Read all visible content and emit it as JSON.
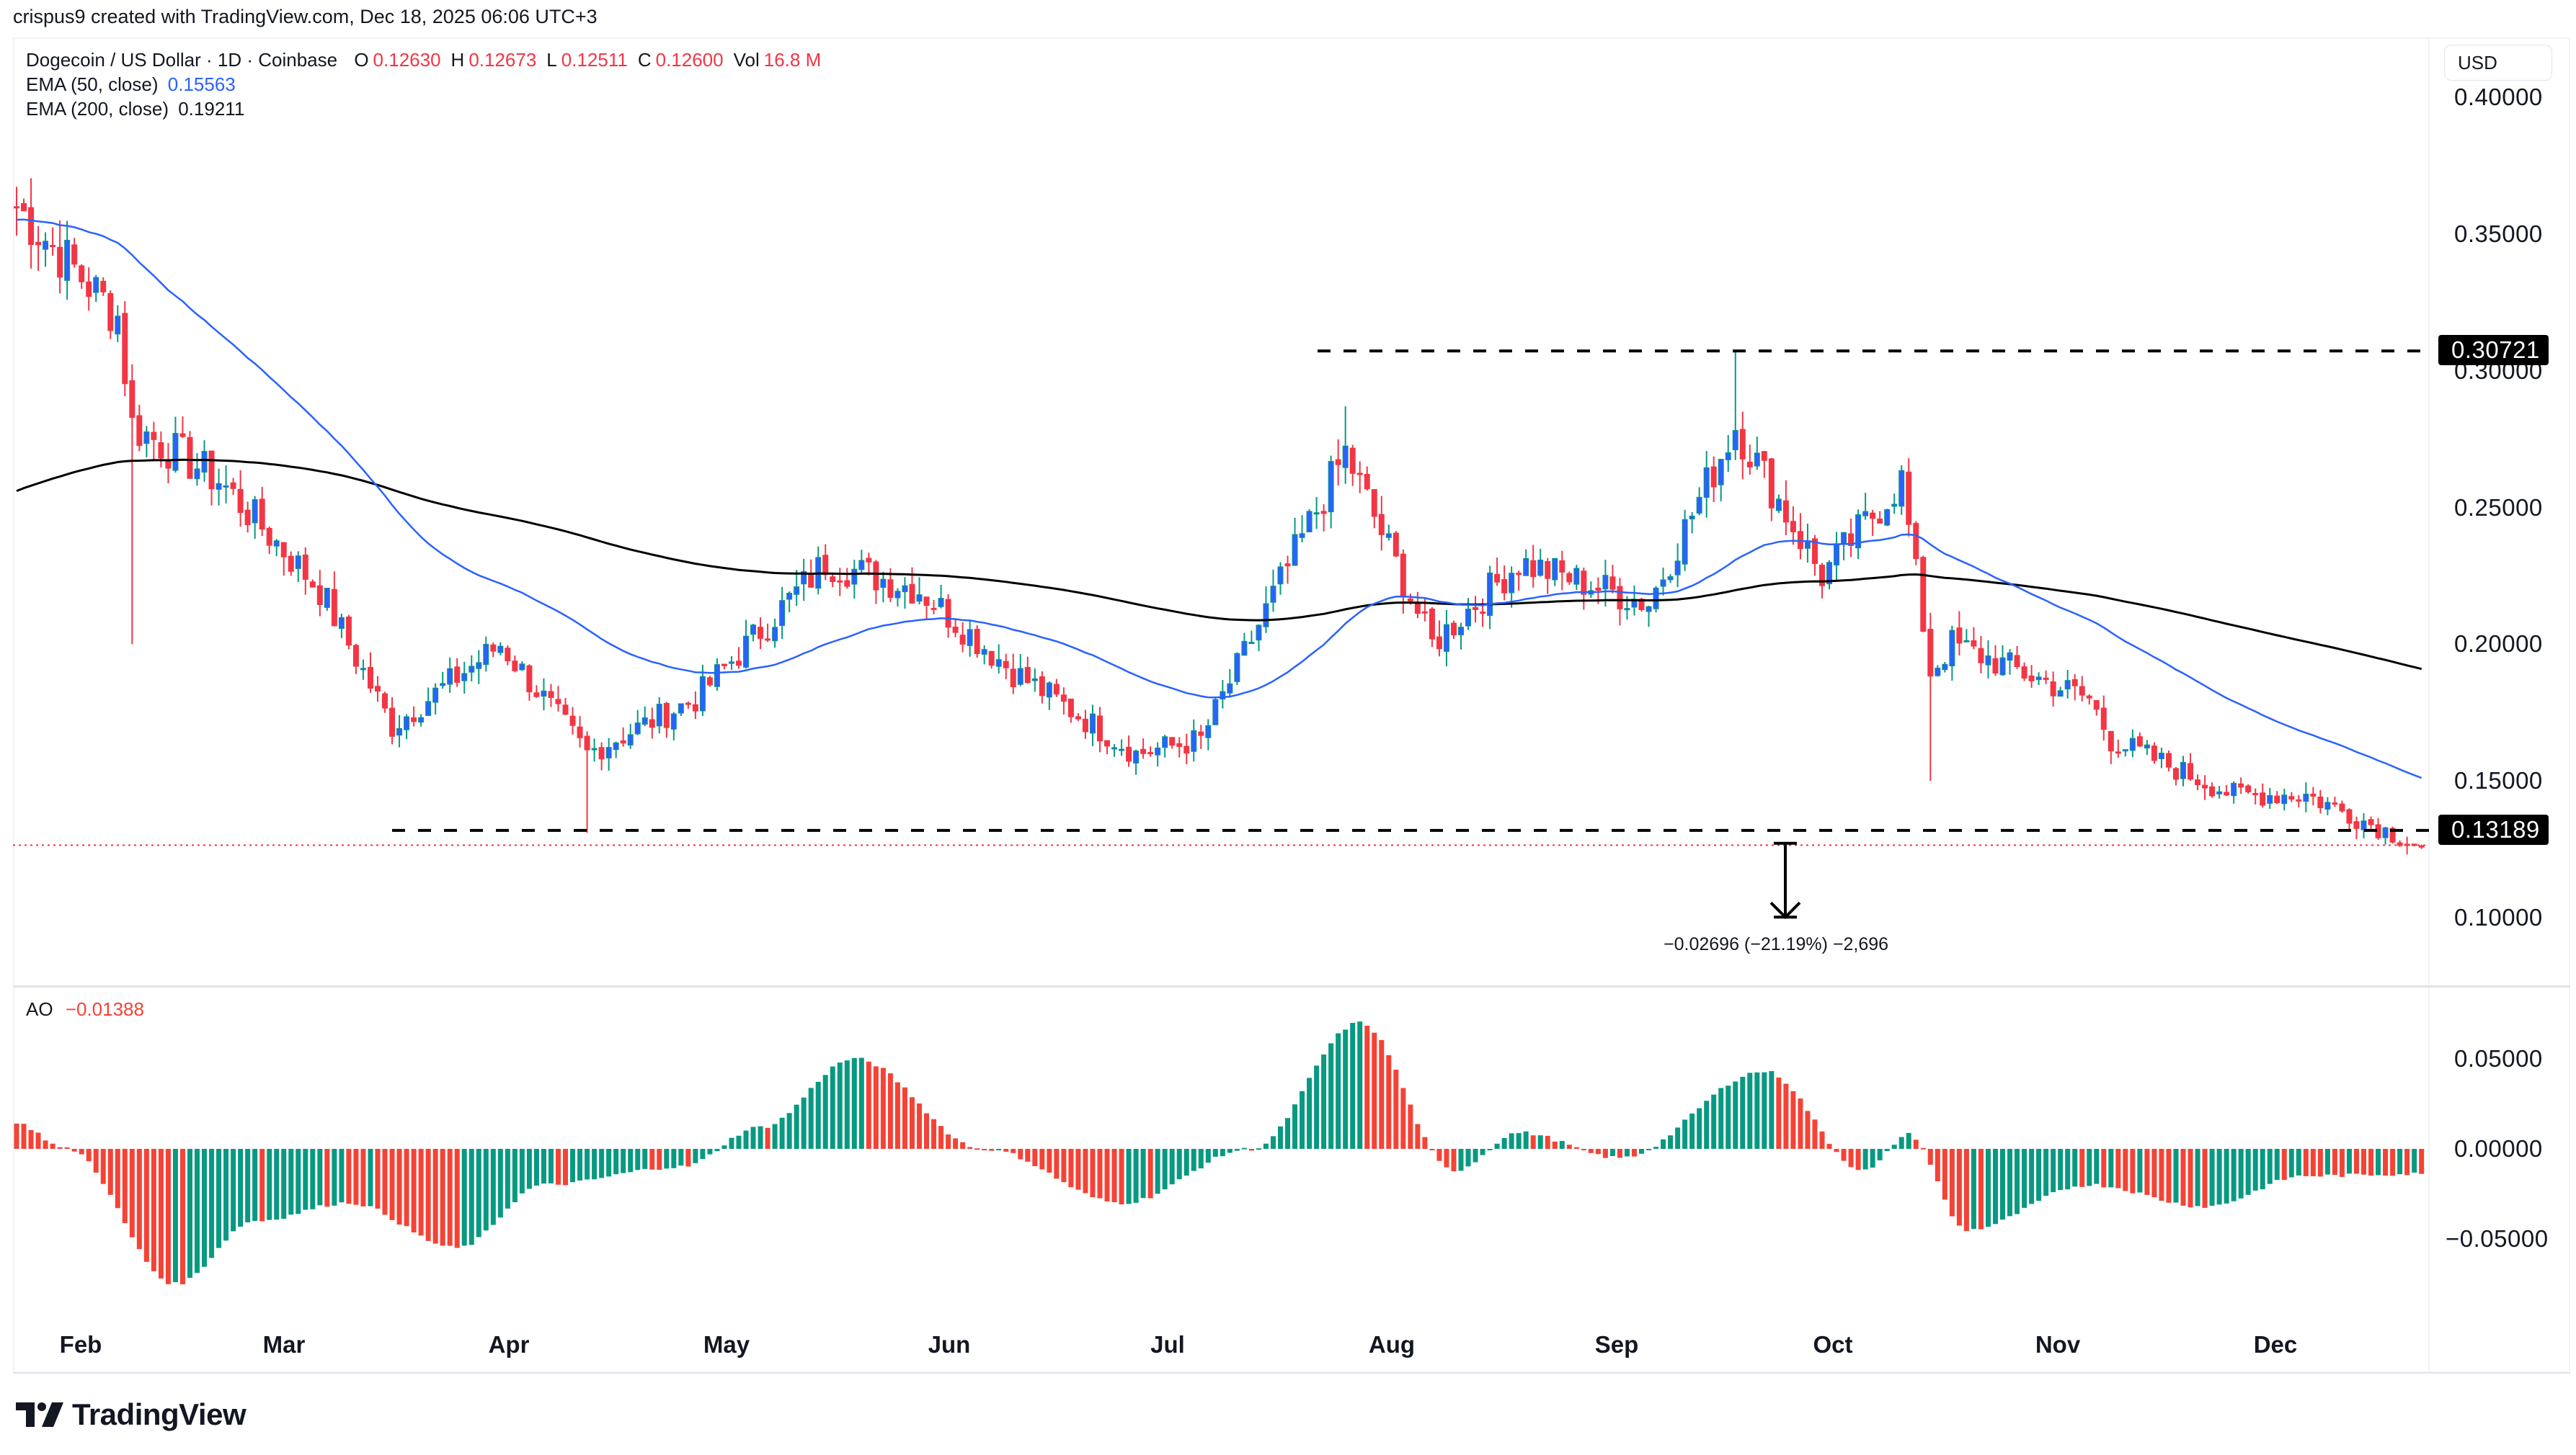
{
  "header": {
    "credit": "crispus9 created with TradingView.com, Dec 18, 2025 06:06 UTC+3"
  },
  "legend": {
    "symbol": "Dogecoin / US Dollar · 1D · Coinbase",
    "ohlc": [
      {
        "key": "O",
        "value": "0.12630"
      },
      {
        "key": "H",
        "value": "0.12673"
      },
      {
        "key": "L",
        "value": "0.12511"
      },
      {
        "key": "C",
        "value": "0.12600"
      },
      {
        "key": "Vol",
        "value": "16.8 M"
      }
    ],
    "ema50": {
      "label": "EMA (50, close)",
      "value": "0.15563"
    },
    "ema200": {
      "label": "EMA (200, close)",
      "value": "0.19211"
    }
  },
  "price_axis": {
    "currency": "USD",
    "ticks": [
      "0.40000",
      "0.35000",
      "0.30000",
      "0.25000",
      "0.20000",
      "0.15000",
      "0.10000"
    ],
    "tick_values": [
      0.4,
      0.35,
      0.3,
      0.25,
      0.2,
      0.15,
      0.1
    ],
    "resistance_label": "0.30721",
    "support_label": "0.13189"
  },
  "measure": {
    "label": "−0.02696 (−21.19%) −2,696"
  },
  "ao_pane": {
    "label": "AO",
    "value": "−0.01388",
    "ticks": [
      "0.05000",
      "0.00000",
      "−0.05000"
    ],
    "tick_values": [
      0.05,
      0.0,
      -0.05
    ]
  },
  "time_axis": {
    "months": [
      "Feb",
      "Mar",
      "Apr",
      "May",
      "Jun",
      "Jul",
      "Aug",
      "Sep",
      "Oct",
      "Nov",
      "Dec"
    ]
  },
  "branding": {
    "logo_text": "TradingView"
  },
  "colors": {
    "up": "#089981",
    "up_fill": "#2962ff",
    "down": "#f23645",
    "ao_up": "#089981",
    "ao_down": "#f44336",
    "ema50": "#2962ff",
    "ema200": "#000000",
    "last_price_line": "#f23645"
  },
  "chart_data": [
    {
      "type": "candlestick",
      "title": "Dogecoin / US Dollar · 1D · Coinbase",
      "xlabel": "",
      "ylabel": "USD",
      "ylim": [
        0.08,
        0.41
      ],
      "x_range": [
        "2025-01-18",
        "2025-12-17"
      ],
      "grid": false,
      "legend_position": "top-left",
      "series": [
        {
          "name": "DOGE/USD close (approx. monthly anchors)",
          "x": [
            "Jan 18",
            "Feb 1",
            "Feb 3",
            "Feb 15",
            "Mar 1",
            "Mar 11",
            "Mar 26",
            "Apr 7",
            "Apr 22",
            "May 10",
            "May 23",
            "Jun 5",
            "Jun 22",
            "Jul 1",
            "Jul 21",
            "Aug 2",
            "Aug 14",
            "Sep 1",
            "Sep 13",
            "Sep 25",
            "Oct 6",
            "Oct 10",
            "Oct 13",
            "Nov 1",
            "Nov 4",
            "Nov 21",
            "Dec 1",
            "Dec 17"
          ],
          "values": [
            0.36,
            0.32,
            0.28,
            0.26,
            0.22,
            0.17,
            0.2,
            0.16,
            0.18,
            0.23,
            0.22,
            0.19,
            0.16,
            0.165,
            0.27,
            0.2,
            0.23,
            0.215,
            0.28,
            0.225,
            0.26,
            0.19,
            0.2,
            0.18,
            0.165,
            0.145,
            0.145,
            0.126
          ]
        },
        {
          "name": "EMA (50, close)",
          "last": 0.15563
        },
        {
          "name": "EMA (200, close)",
          "last": 0.19211
        }
      ],
      "annotations": [
        {
          "type": "hline",
          "value": 0.30721,
          "style": "dashed",
          "from": "Jul 21"
        },
        {
          "type": "hline",
          "value": 0.13189,
          "style": "dashed",
          "from": "Mar 17"
        },
        {
          "type": "measure",
          "from": 0.1272,
          "to": 0.1002,
          "label": "−0.02696 (−21.19%) −2,696"
        }
      ],
      "last_values": {
        "open": 0.1263,
        "high": 0.12673,
        "low": 0.12511,
        "close": 0.126,
        "volume": "16.8 M"
      }
    },
    {
      "type": "bar",
      "title": "AO",
      "ylim": [
        -0.085,
        0.075
      ],
      "series": [
        {
          "name": "AO (approx. anchors)",
          "x": [
            "Jan 18",
            "Jan 25",
            "Feb 9",
            "Feb 20",
            "Mar 5",
            "Mar 20",
            "Apr 1",
            "Apr 20",
            "May 1",
            "May 14",
            "Jun 1",
            "Jun 20",
            "Jul 8",
            "Jul 23",
            "Aug 5",
            "Aug 14",
            "Aug 28",
            "Sep 17",
            "Oct 1",
            "Oct 7",
            "Oct 15",
            "Nov 1",
            "Nov 17",
            "Dec 1",
            "Dec 17"
          ],
          "values": [
            0.014,
            0.0,
            -0.075,
            -0.04,
            -0.03,
            -0.055,
            -0.02,
            -0.01,
            0.012,
            0.05,
            0.0,
            -0.03,
            0.0,
            0.07,
            -0.012,
            0.009,
            -0.005,
            0.043,
            -0.012,
            0.008,
            -0.045,
            -0.02,
            -0.032,
            -0.015,
            -0.01388
          ]
        }
      ],
      "last_value": -0.01388
    }
  ]
}
